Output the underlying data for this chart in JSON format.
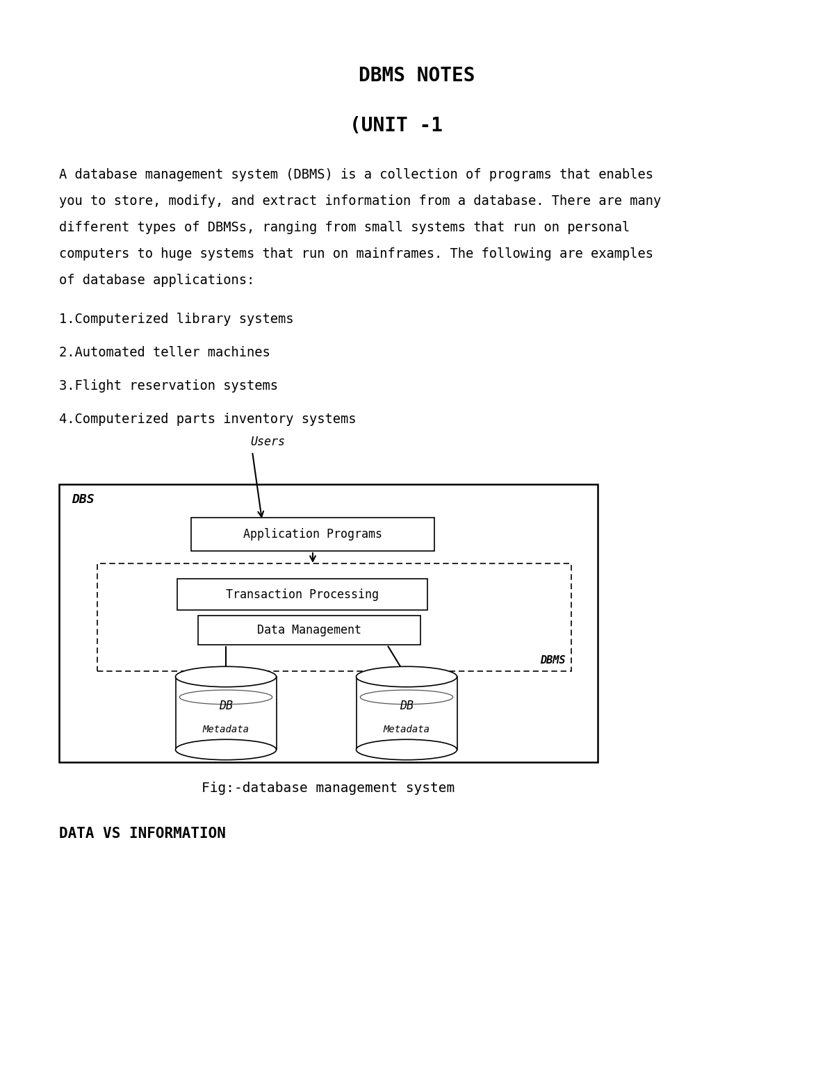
{
  "title": "DBMS NOTES",
  "subtitle": "(UNIT -1",
  "body_text_lines": [
    "A database management system (DBMS) is a collection of programs that enables",
    "you to store, modify, and extract information from a database. There are many",
    "different types of DBMSs, ranging from small systems that run on personal",
    "computers to huge systems that run on mainframes. The following are examples",
    "of database applications:"
  ],
  "list_items": [
    "1.Computerized library systems",
    "2.Automated teller machines",
    "3.Flight reservation systems",
    "4.Computerized parts inventory systems"
  ],
  "fig_caption": "Fig:-database management system",
  "footer_heading": "DATA VS INFORMATION",
  "bg_color": "#ffffff",
  "text_color": "#000000",
  "title_fontsize": 20,
  "subtitle_fontsize": 20,
  "body_fontsize": 13.5,
  "list_fontsize": 13.5,
  "caption_fontsize": 14,
  "footer_fontsize": 15
}
